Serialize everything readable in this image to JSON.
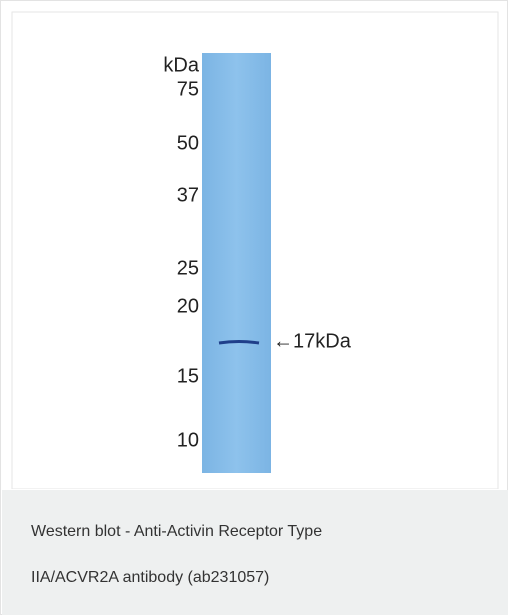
{
  "figure": {
    "unit": "kDa",
    "markers": [
      "75",
      "50",
      "37",
      "25",
      "20",
      "15",
      "10"
    ],
    "band_label": "←17kDa"
  },
  "caption": {
    "lines": [
      "Western blot - Anti-Activin Receptor Type",
      "IIA/ACVR2A antibody (ab231057)"
    ]
  }
}
